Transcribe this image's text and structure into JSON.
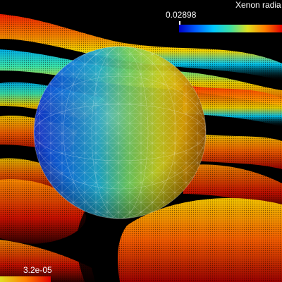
{
  "legend": {
    "title": "Xenon radia",
    "range_max_label": "0.02898",
    "range_min_label": "3.2e-05"
  },
  "colormap": {
    "stops": [
      "#0000c8",
      "#0060ff",
      "#00c8ff",
      "#40e0a0",
      "#e0e020",
      "#ff8000",
      "#e00000"
    ]
  }
}
